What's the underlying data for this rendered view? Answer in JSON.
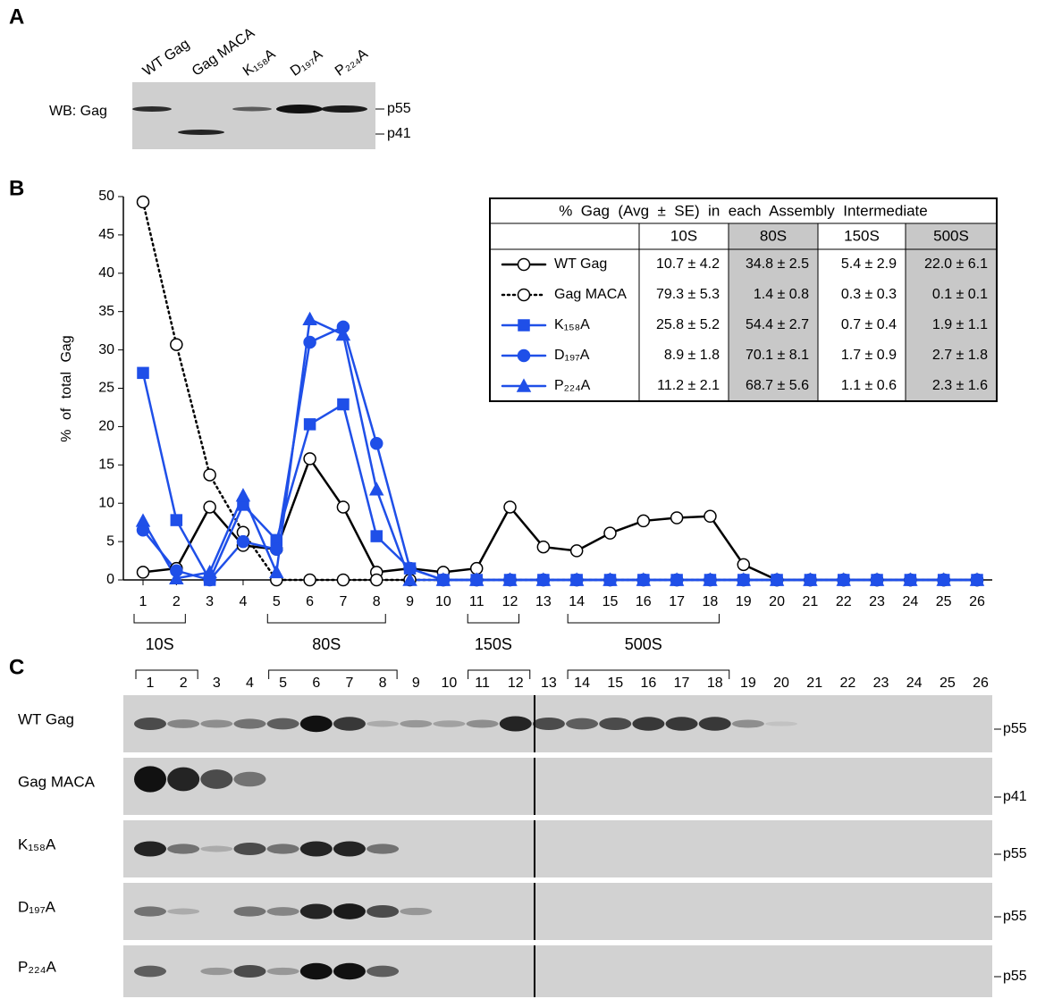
{
  "panels": [
    "A",
    "B",
    "C"
  ],
  "blot_a": {
    "antibody": "WB: Gag",
    "lanes": [
      "WT Gag",
      "Gag MACA",
      "K₁₅₈A",
      "D₁₉₇A",
      "P₂₂₄A"
    ],
    "markers": [
      "p55",
      "p41"
    ]
  },
  "chart_data": {
    "type": "line",
    "y_label": "% of total Gag",
    "categories": [
      "1",
      "2",
      "3",
      "4",
      "5",
      "6",
      "7",
      "8",
      "9",
      "10",
      "11",
      "12",
      "13",
      "14",
      "15",
      "16",
      "17",
      "18",
      "19",
      "20",
      "21",
      "22",
      "23",
      "24",
      "25",
      "26"
    ],
    "ylim": [
      0,
      50
    ],
    "yticks": [
      0,
      5,
      10,
      15,
      20,
      25,
      30,
      35,
      40,
      45,
      50
    ],
    "series": [
      {
        "name": "WT Gag",
        "color": "#000000",
        "marker": "circle",
        "filled": false,
        "dash": "solid",
        "values": [
          1,
          1.5,
          9.5,
          4.5,
          4,
          15.8,
          9.5,
          1,
          1.5,
          1,
          1.5,
          9.5,
          4.3,
          3.8,
          6.1,
          7.7,
          8.1,
          8.3,
          2,
          0,
          0,
          0,
          0,
          0,
          0,
          0
        ]
      },
      {
        "name": "Gag MACA",
        "color": "#000000",
        "marker": "circle",
        "filled": false,
        "dash": "dotted",
        "values": [
          49.3,
          30.7,
          13.7,
          6.2,
          0,
          0,
          0,
          0,
          0,
          0,
          0,
          0,
          0,
          0,
          0,
          0,
          0,
          0,
          0,
          0,
          0,
          0,
          0,
          0,
          0,
          0
        ]
      },
      {
        "name": "K₁₅₈A",
        "color": "#1f4fe8",
        "marker": "square",
        "filled": true,
        "dash": "solid",
        "values": [
          27,
          7.8,
          0,
          9.8,
          5.2,
          20.3,
          22.9,
          5.7,
          1.5,
          0,
          0,
          0,
          0,
          0,
          0,
          0,
          0,
          0,
          0,
          0,
          0,
          0,
          0,
          0,
          0,
          0
        ]
      },
      {
        "name": "D₁₉₇A",
        "color": "#1f4fe8",
        "marker": "circle",
        "filled": true,
        "dash": "solid",
        "values": [
          6.5,
          1.2,
          0,
          5,
          4,
          31,
          33,
          17.8,
          1.5,
          0,
          0,
          0,
          0,
          0,
          0,
          0,
          0,
          0,
          0,
          0,
          0,
          0,
          0,
          0,
          0,
          0
        ]
      },
      {
        "name": "P₂₂₄A",
        "color": "#1f4fe8",
        "marker": "triangle",
        "filled": true,
        "dash": "solid",
        "values": [
          7.7,
          0.2,
          1,
          11,
          1,
          34,
          32,
          11.8,
          0,
          0,
          0,
          0,
          0,
          0,
          0,
          0,
          0,
          0,
          0,
          0,
          0,
          0,
          0,
          0,
          0,
          0
        ]
      }
    ],
    "groups": [
      {
        "label": "10S",
        "from": "1",
        "to": "2"
      },
      {
        "label": "80S",
        "from": "5",
        "to": "8"
      },
      {
        "label": "150S",
        "from": "11",
        "to": "12"
      },
      {
        "label": "500S",
        "from": "14",
        "to": "18"
      }
    ],
    "table": {
      "title": "%  Gag  (Avg  ±  SE)  in  each  Assembly  Intermediate",
      "columns": [
        "10S",
        "80S",
        "150S",
        "500S"
      ],
      "shaded_columns": [
        "80S",
        "500S"
      ],
      "rows": [
        [
          "10.7 ± 4.2",
          "34.8 ± 2.5",
          "5.4 ± 2.9",
          "22.0 ± 6.1"
        ],
        [
          "79.3 ± 5.3",
          "1.4 ± 0.8",
          "0.3 ± 0.3",
          "0.1 ± 0.1"
        ],
        [
          "25.8 ± 5.2",
          "54.4 ± 2.7",
          "0.7 ± 0.4",
          "1.9 ± 1.1"
        ],
        [
          "8.9 ± 1.8",
          "70.1 ± 8.1",
          "1.7 ± 0.9",
          "2.7 ± 1.8"
        ],
        [
          "11.2 ± 2.1",
          "68.7 ± 5.6",
          "1.1 ± 0.6",
          "2.3 ± 1.6"
        ]
      ]
    }
  },
  "blot_c": {
    "rows": [
      {
        "name": "WT Gag",
        "marker": "p55"
      },
      {
        "name": "Gag MACA",
        "marker": "p41"
      },
      {
        "name": "K₁₅₈A",
        "marker": "p55"
      },
      {
        "name": "D₁₉₇A",
        "marker": "p55"
      },
      {
        "name": "P₂₂₄A",
        "marker": "p55"
      }
    ]
  }
}
